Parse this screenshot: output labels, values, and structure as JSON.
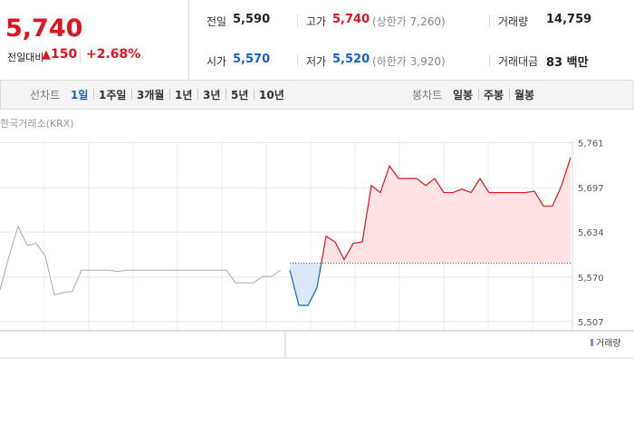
{
  "quote": {
    "price": "5,740",
    "change_label": "전일대비",
    "change": "150",
    "change_pct": "+2.68%"
  },
  "stats": [
    {
      "label": "전일",
      "value": "5,590",
      "color": "#222222"
    },
    {
      "label": "고가",
      "value": "5,740",
      "note": "(상한가 7,260)",
      "color": "#e0141e"
    },
    {
      "label": "거래량",
      "value": "14,759",
      "color": "#222222"
    },
    {
      "label": "시가",
      "value": "5,570",
      "color": "#1a5fd0"
    },
    {
      "label": "저가",
      "value": "5,520",
      "note": "(하한가 3,920)",
      "color": "#1a5fd0"
    },
    {
      "label": "거래대금",
      "value": "83 백만",
      "color": "#222222"
    }
  ],
  "line_tabs": {
    "label": "선차트",
    "items": [
      "1일",
      "1주일",
      "3개월",
      "1년",
      "3년",
      "5년",
      "10년"
    ],
    "active": 0
  },
  "candle_tabs": {
    "label": "봉차트",
    "items": [
      "일봉",
      "주봉",
      "월봉"
    ]
  },
  "chart_data": {
    "type": "line",
    "source": "한국거래소(KRX)",
    "volume_legend": "거래량",
    "ylim": [
      5494,
      5764
    ],
    "yticks": [
      {
        "value": 5761,
        "label": "5,761"
      },
      {
        "value": 5697,
        "label": "5,697"
      },
      {
        "value": 5634,
        "label": "5,634"
      },
      {
        "value": 5570,
        "label": "5,570"
      },
      {
        "value": 5507,
        "label": "5,507"
      }
    ],
    "baseline": 5590,
    "up_color": "#e0141e",
    "down_color": "#1a5fd0",
    "series": [
      {
        "color": "#aaaaaa",
        "values": [
          5552,
          5600,
          5642,
          5615,
          5618,
          5600,
          5545,
          5548,
          5550,
          5580,
          5580,
          5580,
          5580,
          5578,
          5580,
          5580,
          5580,
          5580,
          5580,
          5580,
          5580,
          5580,
          5580,
          5580,
          5580,
          5580,
          5562,
          5562,
          5562,
          5571,
          5571,
          5580,
          null,
          null,
          null,
          null,
          null,
          null,
          null,
          null,
          null,
          null,
          null,
          null,
          null,
          null,
          null,
          null,
          null,
          null,
          null,
          null,
          null,
          null,
          null,
          null,
          null,
          null,
          null,
          null,
          null,
          null,
          null,
          null
        ]
      },
      {
        "color": "#e0141e",
        "values": [
          null,
          null,
          null,
          null,
          null,
          null,
          null,
          null,
          null,
          null,
          null,
          null,
          null,
          null,
          null,
          null,
          null,
          null,
          null,
          null,
          null,
          null,
          null,
          null,
          null,
          null,
          null,
          null,
          null,
          null,
          null,
          null,
          5580,
          5530,
          5530,
          5555,
          5628,
          5620,
          5595,
          5618,
          5620,
          5700,
          5690,
          5728,
          5710,
          5710,
          5710,
          5700,
          5710,
          5690,
          5690,
          5695,
          5690,
          5710,
          5690,
          5690,
          5690,
          5690,
          5690,
          5692,
          5671,
          5671,
          5700,
          5740
        ]
      }
    ]
  }
}
